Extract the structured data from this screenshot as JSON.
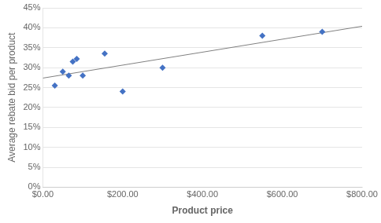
{
  "chart_data": {
    "type": "scatter",
    "xlabel": "Product price",
    "ylabel": "Average rebate bid per product",
    "series": [
      {
        "type": "scatter",
        "color": "#4472C4",
        "marker": "diamond",
        "x": [
          30,
          50,
          65,
          75,
          85,
          100,
          155,
          200,
          300,
          550,
          700
        ],
        "values": [
          0.255,
          0.29,
          0.28,
          0.315,
          0.322,
          0.28,
          0.335,
          0.24,
          0.3,
          0.38,
          0.39
        ]
      },
      {
        "type": "line",
        "color": "#808080",
        "line_style": "solid",
        "x": [
          0,
          800
        ],
        "values": [
          0.2737558077,
          0.4038635532
        ]
      }
    ],
    "xlim": [
      0,
      800
    ],
    "ylim": [
      0,
      0.45
    ],
    "xticks": [
      {
        "value": 0,
        "label": "$0.00"
      },
      {
        "value": 200,
        "label": "$200.00"
      },
      {
        "value": 400,
        "label": "$400.00"
      },
      {
        "value": 600,
        "label": "$600.00"
      },
      {
        "value": 800,
        "label": "$800.00"
      }
    ],
    "yticks": [
      {
        "value": 0,
        "label": "0%"
      },
      {
        "value": 0.05,
        "label": "5%"
      },
      {
        "value": 0.1,
        "label": "10%"
      },
      {
        "value": 0.15,
        "label": "15%"
      },
      {
        "value": 0.2,
        "label": "20%"
      },
      {
        "value": 0.25,
        "label": "25%"
      },
      {
        "value": 0.3,
        "label": "30%"
      },
      {
        "value": 0.35,
        "label": "35%"
      },
      {
        "value": 0.4,
        "label": "40%"
      },
      {
        "value": 0.45,
        "label": "45%"
      }
    ],
    "grid": "y"
  }
}
